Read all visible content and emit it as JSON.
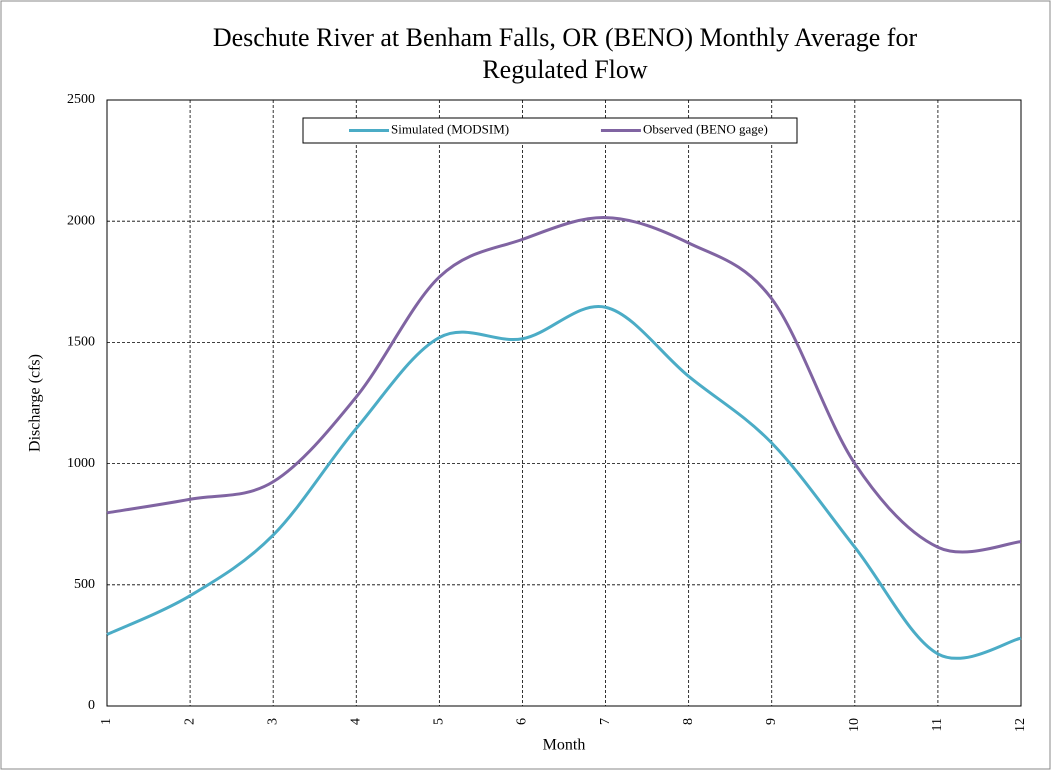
{
  "chart_data": {
    "type": "line",
    "title": "Deschute River at Benham Falls, OR (BENO) Monthly Average for Regulated Flow",
    "x_label": "Month",
    "y_label": "Discharge (cfs)",
    "x": [
      1,
      2,
      3,
      4,
      5,
      6,
      7,
      8,
      9,
      10,
      11,
      12
    ],
    "series": [
      {
        "name": "Simulated (MODSIM)",
        "color": "#4bacc6",
        "values": [
          295,
          455,
          705,
          1145,
          1520,
          1515,
          1645,
          1360,
          1085,
          655,
          215,
          280
        ]
      },
      {
        "name": "Observed (BENO gage)",
        "color": "#8064a2",
        "values": [
          797,
          853,
          925,
          1275,
          1770,
          1925,
          2015,
          1910,
          1680,
          1000,
          655,
          678
        ]
      }
    ],
    "xlim": [
      1,
      12
    ],
    "xticks": [
      1,
      2,
      3,
      4,
      5,
      6,
      7,
      8,
      9,
      10,
      11,
      12
    ],
    "ylim": [
      0,
      2500
    ],
    "yticks": [
      0,
      500,
      1000,
      1500,
      2000,
      2500
    ],
    "grid": true,
    "smooth": true,
    "legend": "top"
  }
}
